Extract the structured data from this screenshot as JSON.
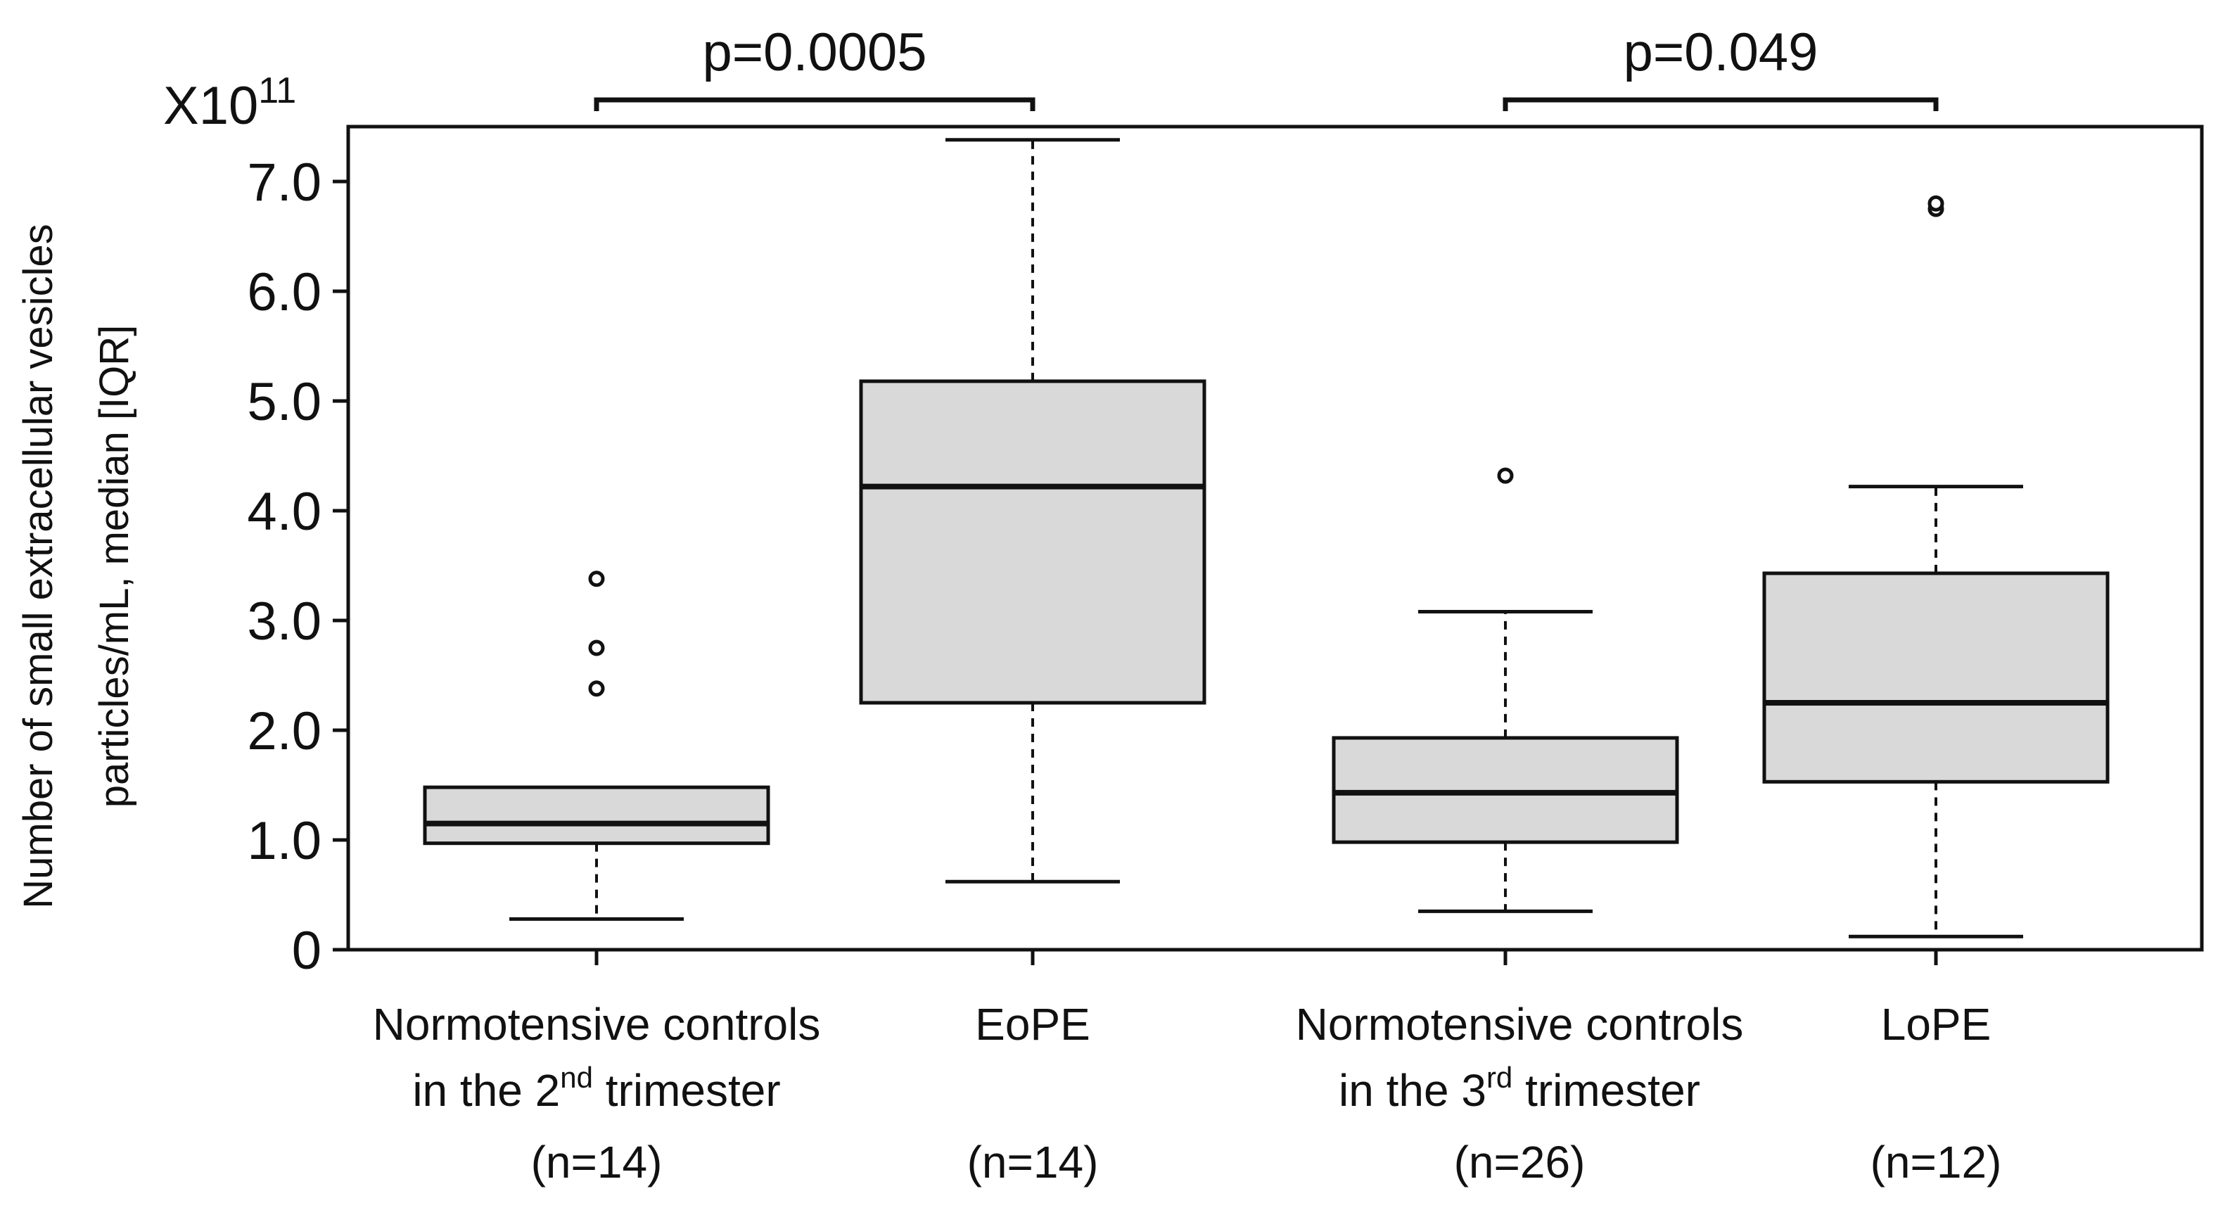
{
  "chart_data": {
    "type": "box",
    "title": "",
    "ylabel_lines": [
      "Number of small extracellular vesicles",
      "particles/mL, median [IQR]"
    ],
    "y_multiplier": {
      "base": "X10",
      "exponent": "11"
    },
    "ylim": [
      0,
      7.5
    ],
    "yticks": [
      {
        "value": 0,
        "label": "0"
      },
      {
        "value": 1.0,
        "label": "1.0"
      },
      {
        "value": 2.0,
        "label": "2.0"
      },
      {
        "value": 3.0,
        "label": "3.0"
      },
      {
        "value": 4.0,
        "label": "4.0"
      },
      {
        "value": 5.0,
        "label": "5.0"
      },
      {
        "value": 6.0,
        "label": "6.0"
      },
      {
        "value": 7.0,
        "label": "7.0"
      }
    ],
    "groups": [
      {
        "id": "nc2",
        "label_lines": [
          {
            "text": "Normotensive controls"
          },
          {
            "text": "in the 2",
            "sup": "nd",
            "after": " trimester"
          },
          {
            "text": "(n=14)"
          }
        ],
        "whisker_low": 0.28,
        "q1": 0.97,
        "median": 1.15,
        "q3": 1.48,
        "whisker_high": 1.48,
        "outliers": [
          2.38,
          2.75,
          3.38
        ]
      },
      {
        "id": "eope",
        "label_lines": [
          {
            "text": "EoPE"
          },
          {
            "text": ""
          },
          {
            "text": "(n=14)"
          }
        ],
        "whisker_low": 0.62,
        "q1": 2.25,
        "median": 4.22,
        "q3": 5.18,
        "whisker_high": 7.38,
        "outliers": []
      },
      {
        "id": "nc3",
        "label_lines": [
          {
            "text": "Normotensive controls"
          },
          {
            "text": "in the 3",
            "sup": "rd",
            "after": " trimester"
          },
          {
            "text": "(n=26)"
          }
        ],
        "whisker_low": 0.35,
        "q1": 0.98,
        "median": 1.43,
        "q3": 1.93,
        "whisker_high": 3.08,
        "outliers": [
          4.32
        ]
      },
      {
        "id": "lope",
        "label_lines": [
          {
            "text": "LoPE"
          },
          {
            "text": ""
          },
          {
            "text": "(n=12)"
          }
        ],
        "whisker_low": 0.12,
        "q1": 1.53,
        "median": 2.25,
        "q3": 3.43,
        "whisker_high": 4.22,
        "outliers": [
          6.75,
          6.8
        ]
      }
    ],
    "comparisons": [
      {
        "from": "nc2",
        "to": "eope",
        "label": "p=0.0005"
      },
      {
        "from": "nc3",
        "to": "lope",
        "label": "p=0.049"
      }
    ],
    "colors": {
      "box_fill": "#d9d9d9",
      "stroke": "#111111"
    }
  }
}
